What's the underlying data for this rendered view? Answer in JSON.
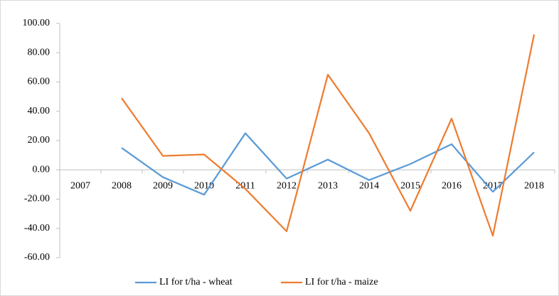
{
  "chart_data": {
    "type": "line",
    "categories": [
      "2007",
      "2008",
      "2009",
      "2010",
      "2011",
      "2012",
      "2013",
      "2014",
      "2015",
      "2016",
      "2017",
      "2018"
    ],
    "series": [
      {
        "name": "LI for t/ha - wheat",
        "color": "#5b9bd5",
        "values": [
          null,
          15,
          -5,
          -17,
          25,
          -6,
          7,
          -7,
          4,
          17.5,
          -15,
          12
        ]
      },
      {
        "name": "LI for t/ha - maize",
        "color": "#ed7d31",
        "values": [
          null,
          49,
          9.5,
          10.5,
          -13,
          -42,
          65,
          25,
          -28,
          35,
          -45,
          92.5
        ]
      }
    ],
    "ylim": [
      -60,
      100
    ],
    "yticks": [
      {
        "value": -60,
        "label": "-60.00"
      },
      {
        "value": -40,
        "label": "-40.00"
      },
      {
        "value": -20,
        "label": "-20.00"
      },
      {
        "value": 0,
        "label": "0.00"
      },
      {
        "value": 20,
        "label": "20.00"
      },
      {
        "value": 40,
        "label": "40.00"
      },
      {
        "value": 60,
        "label": "60.00"
      },
      {
        "value": 80,
        "label": "80.00"
      },
      {
        "value": 100,
        "label": "100.00"
      }
    ],
    "grid": false,
    "legend": "bottom"
  }
}
